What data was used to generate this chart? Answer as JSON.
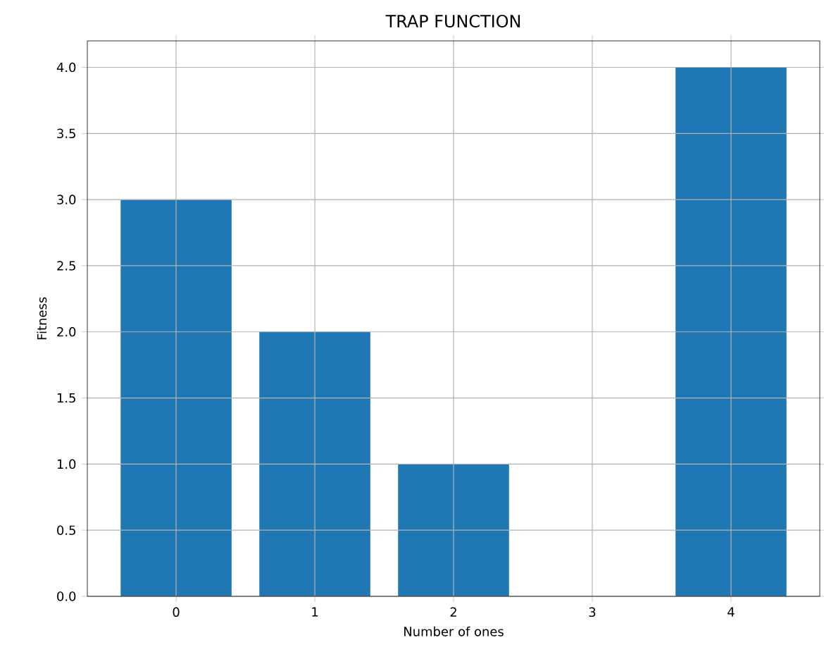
{
  "chart_data": {
    "type": "bar",
    "title": "TRAP FUNCTION",
    "xlabel": "Number of ones",
    "ylabel": "Fitness",
    "categories": [
      "0",
      "1",
      "2",
      "3",
      "4"
    ],
    "values": [
      3,
      2,
      1,
      0,
      4
    ],
    "color": "#1f77b4",
    "ylim": [
      0,
      4.2
    ],
    "yticks": [
      {
        "value": 0,
        "label": "0.0"
      },
      {
        "value": 0.5,
        "label": "0.5"
      },
      {
        "value": 1,
        "label": "1.0"
      },
      {
        "value": 1.5,
        "label": "1.5"
      },
      {
        "value": 2,
        "label": "2.0"
      },
      {
        "value": 2.5,
        "label": "2.5"
      },
      {
        "value": 3,
        "label": "3.0"
      },
      {
        "value": 3.5,
        "label": "3.5"
      },
      {
        "value": 4,
        "label": "4.0"
      }
    ],
    "grid": true
  }
}
